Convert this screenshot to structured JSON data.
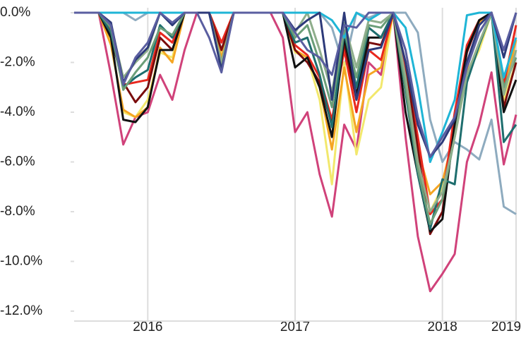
{
  "chart_data": {
    "type": "line",
    "categories": [
      null,
      null,
      null,
      null,
      null,
      null,
      "2016",
      null,
      null,
      null,
      null,
      null,
      null,
      null,
      null,
      null,
      null,
      null,
      "2017",
      null,
      null,
      null,
      null,
      null,
      null,
      null,
      null,
      null,
      null,
      null,
      "2018",
      null,
      null,
      null,
      null,
      null,
      "2019"
    ],
    "ylim": [
      -12.4,
      0.2
    ],
    "yticks": [
      {
        "value": 0,
        "label": "0.0%"
      },
      {
        "value": -2,
        "label": "-2.0%"
      },
      {
        "value": -4,
        "label": "-4.0%"
      },
      {
        "value": -6,
        "label": "-6.0%"
      },
      {
        "value": -8,
        "label": "-8.0%"
      },
      {
        "value": -10,
        "label": "-10.0%"
      },
      {
        "value": -12,
        "label": "-12.0%"
      }
    ],
    "grid": true,
    "series": [
      {
        "color": "#8eabbf",
        "values": [
          0,
          0,
          0,
          0,
          0,
          -0.3,
          0,
          0,
          0,
          0,
          0,
          0,
          -1.5,
          0,
          0,
          0,
          0,
          0,
          0,
          0,
          0,
          -0.6,
          -2.2,
          0,
          -0.2,
          0,
          0,
          0,
          -0.8,
          -4.3,
          -6.0,
          -5.2,
          -5.5,
          -5.9,
          -4.3,
          -7.8,
          -8.1
        ]
      },
      {
        "color": "#d0427a",
        "values": [
          0,
          0,
          0,
          -2.5,
          -5.3,
          -4.2,
          -4.0,
          -2.5,
          -3.5,
          -1.5,
          0,
          0,
          0,
          0,
          0,
          0,
          0,
          -1.0,
          -4.8,
          -4.0,
          -6.5,
          -8.2,
          -4.5,
          -5.5,
          -2.0,
          -2.5,
          0,
          -5.0,
          -9.0,
          -11.2,
          -10.5,
          -9.7,
          -6.0,
          -4.5,
          -2.4,
          -6.1,
          -4.1
        ]
      },
      {
        "color": "#f2e86d",
        "values": [
          0,
          0,
          0,
          -1.2,
          -4.0,
          -4.2,
          -3.5,
          -1.6,
          -1.8,
          0,
          0,
          0,
          -1.6,
          0,
          0,
          0,
          0,
          0,
          -1.6,
          -1.8,
          -3.5,
          -6.9,
          -2.0,
          -5.7,
          -3.5,
          -3.0,
          0,
          -3.0,
          -6.0,
          -8.0,
          -7.0,
          -5.0,
          -2.5,
          -1.5,
          0,
          -3.5,
          -2.0
        ]
      },
      {
        "color": "#f5a623",
        "values": [
          0,
          0,
          0,
          -1.3,
          -3.9,
          -4.2,
          -3.8,
          -1.4,
          -2.0,
          0,
          0,
          0,
          -1.8,
          0,
          0,
          0,
          0,
          0,
          -1.5,
          -1.8,
          -3.0,
          -5.5,
          -2.2,
          -4.8,
          -2.5,
          -2.2,
          0,
          -2.5,
          -5.5,
          -7.3,
          -6.8,
          -4.8,
          -2.3,
          -0.4,
          0,
          -3.2,
          -1.1
        ]
      },
      {
        "color": "#e8281e",
        "values": [
          0,
          0,
          0,
          -0.7,
          -2.9,
          -2.8,
          -2.7,
          -0.8,
          -1.2,
          0,
          0,
          0,
          -1.2,
          0,
          0,
          0,
          0,
          0,
          -1.3,
          -1.7,
          -2.6,
          -4.3,
          -1.5,
          -4.0,
          -1.5,
          -1.9,
          0,
          -2.2,
          -5.0,
          -8.1,
          -7.5,
          -4.0,
          -1.3,
          -0.3,
          0,
          -2.9,
          -0.5
        ]
      },
      {
        "color": "#7a0c0c",
        "values": [
          0,
          0,
          0,
          -1.0,
          -2.8,
          -3.6,
          -3.0,
          -1.0,
          -1.5,
          0,
          0,
          0,
          -1.5,
          0,
          0,
          0,
          0,
          0,
          -1.5,
          -2.0,
          -2.8,
          -4.5,
          -1.2,
          -3.5,
          -1.2,
          -1.3,
          0,
          -2.0,
          -5.5,
          -8.9,
          -8.0,
          -4.5,
          -1.6,
          -0.3,
          0,
          -3.8,
          -2.0
        ]
      },
      {
        "color": "#111111",
        "values": [
          0,
          0,
          0,
          -1.0,
          -4.3,
          -4.4,
          -3.8,
          -1.5,
          -1.5,
          0,
          0,
          0,
          -2.2,
          0,
          0,
          0,
          0,
          0,
          -2.2,
          -1.8,
          -3.0,
          -5.0,
          -1.0,
          -3.3,
          -1.0,
          -1.0,
          0,
          -4.0,
          -6.5,
          -8.8,
          -8.3,
          -4.5,
          -1.5,
          -0.3,
          0,
          -4.0,
          -2.7
        ]
      },
      {
        "color": "#1e6e6e",
        "values": [
          0,
          0,
          0,
          -0.8,
          -3.0,
          -2.6,
          -2.3,
          -0.5,
          -1.0,
          0,
          0,
          0,
          -2.0,
          0,
          0,
          0,
          0,
          0,
          -1.2,
          -1.0,
          -2.5,
          -4.6,
          -0.8,
          -3.0,
          -0.6,
          -1.0,
          0,
          -3.2,
          -6.5,
          -8.7,
          -6.7,
          -6.9,
          -2.8,
          -1.3,
          0,
          -5.2,
          -4.5
        ]
      },
      {
        "color": "#6b9e78",
        "values": [
          0,
          0,
          0,
          -0.6,
          -3.1,
          -2.4,
          -1.8,
          -0.6,
          -0.9,
          0,
          0,
          0,
          -2.2,
          0,
          0,
          0,
          0,
          0,
          -1.0,
          -0.5,
          -2.0,
          -3.8,
          -0.7,
          -2.6,
          -0.5,
          -0.6,
          0,
          -3.0,
          -6.3,
          -8.5,
          -7.5,
          -5.0,
          -2.0,
          -0.8,
          0,
          -3.0,
          -1.8
        ]
      },
      {
        "color": "#8fae8c",
        "values": [
          0,
          0,
          0,
          -0.5,
          -2.6,
          -2.0,
          -1.5,
          0,
          -0.5,
          0,
          0,
          0,
          -2.0,
          0,
          0,
          0,
          0,
          0,
          -0.8,
          0,
          -1.5,
          -3.2,
          -0.4,
          -2.2,
          -0.3,
          -0.4,
          0,
          -2.6,
          -6.0,
          -8.0,
          -7.2,
          -5.0,
          -2.5,
          -1.2,
          0,
          -3.3,
          -1.5
        ]
      },
      {
        "color": "#1fb5d6",
        "values": [
          0,
          0,
          0,
          0,
          0,
          0,
          0,
          0,
          0,
          0,
          0,
          0,
          0,
          0,
          0,
          0,
          0,
          0,
          0,
          0,
          0,
          -0.3,
          -1.0,
          0,
          -0.3,
          0,
          0,
          -0.6,
          -3.0,
          -6.0,
          -4.8,
          -3.5,
          -0.1,
          0,
          0,
          -2.6,
          -1.0
        ]
      },
      {
        "color": "#2d3a7a",
        "values": [
          0,
          0,
          0,
          -0.4,
          -2.8,
          -1.9,
          -1.4,
          0,
          -0.5,
          0,
          0,
          0,
          -2.3,
          0,
          0,
          0,
          0,
          0,
          -0.7,
          -0.3,
          0,
          -3.5,
          0,
          -3.5,
          -1.5,
          -1.4,
          0,
          -2.0,
          -4.5,
          -5.8,
          -5.2,
          -4.3,
          -2.0,
          -0.5,
          0,
          -1.8,
          0
        ]
      },
      {
        "color": "#5a5ea0",
        "values": [
          0,
          0,
          0,
          -0.5,
          -2.9,
          -1.8,
          -1.2,
          0,
          -0.4,
          0,
          0,
          -1.0,
          -2.4,
          0,
          0,
          0,
          0,
          0,
          -0.8,
          -1.5,
          -1.8,
          -2.5,
          -0.5,
          -0.6,
          0,
          0,
          0,
          -1.5,
          -4.2,
          -5.8,
          -5.0,
          -4.2,
          -2.2,
          -0.8,
          0,
          -1.5,
          0
        ]
      }
    ]
  }
}
